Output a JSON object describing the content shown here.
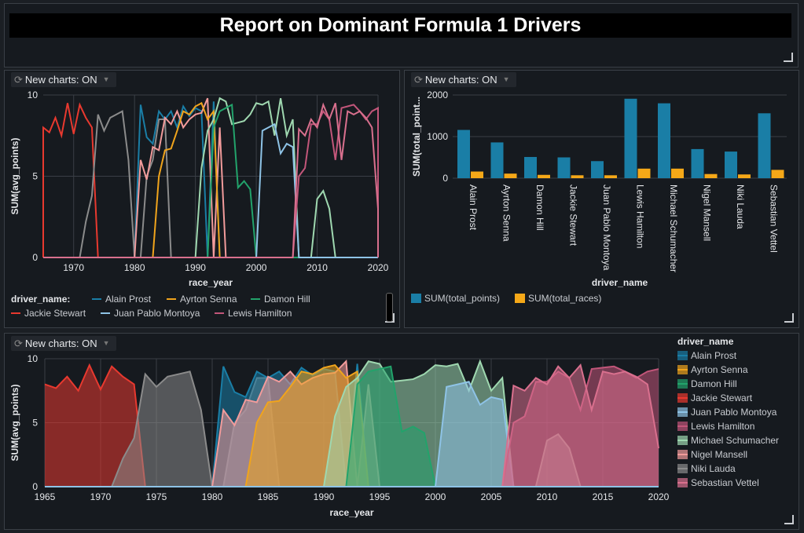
{
  "header": {
    "title": "Report on Dominant Formula 1 Drivers"
  },
  "toggle_label": "New charts: ON",
  "colors": {
    "Alain Prost": "#1a7ea6",
    "Ayrton Senna": "#f0a41c",
    "Damon Hill": "#22a36b",
    "Jackie Stewart": "#e8392f",
    "Juan Pablo Montoya": "#8ec3e6",
    "Lewis Hamilton": "#c2567a",
    "Michael Schumacher": "#9fd8b0",
    "Nigel Mansell": "#f29b9b",
    "Niki Lauda": "#8b8b8b",
    "Sebastian Vettel": "#d9708e"
  },
  "legend_top_left": {
    "title": "driver_name:",
    "items": [
      "Alain Prost",
      "Ayrton Senna",
      "Damon Hill",
      "Jackie Stewart",
      "Juan Pablo Montoya",
      "Lewis Hamilton"
    ]
  },
  "legend_bottom": {
    "title": "driver_name",
    "items": [
      "Alain Prost",
      "Ayrton Senna",
      "Damon Hill",
      "Jackie Stewart",
      "Juan Pablo Montoya",
      "Lewis Hamilton",
      "Michael Schumacher",
      "Nigel Mansell",
      "Niki Lauda",
      "Sebastian Vettel"
    ]
  },
  "legend_bar": {
    "items": [
      "SUM(total_points)",
      "SUM(total_races)"
    ]
  },
  "chart_data": [
    {
      "type": "line",
      "xlabel": "race_year",
      "ylabel": "SUM(avg_points)",
      "xlim": [
        1965,
        2020
      ],
      "ylim": [
        0,
        10
      ],
      "xticks": [
        1970,
        1980,
        1990,
        2000,
        2010,
        2020
      ],
      "yticks": [
        0,
        5,
        10
      ],
      "series": [
        {
          "name": "Jackie Stewart",
          "x": [
            1965,
            1966,
            1967,
            1968,
            1969,
            1970,
            1971,
            1972,
            1973,
            1974
          ],
          "values": [
            8.0,
            7.7,
            8.6,
            7.5,
            9.5,
            7.6,
            9.4,
            8.6,
            8.0,
            0
          ]
        },
        {
          "name": "Niki Lauda",
          "x": [
            1971,
            1972,
            1973,
            1974,
            1975,
            1976,
            1977,
            1978,
            1979,
            1980,
            1981,
            1982,
            1983,
            1984,
            1985,
            1986
          ],
          "values": [
            0,
            2.2,
            3.8,
            8.8,
            7.8,
            8.6,
            8.8,
            9.0,
            6.0,
            0,
            0,
            5.0,
            6.0,
            8.5,
            8.5,
            0
          ]
        },
        {
          "name": "Alain Prost",
          "x": [
            1979,
            1980,
            1981,
            1982,
            1983,
            1984,
            1985,
            1986,
            1987,
            1988,
            1989,
            1990,
            1991,
            1992,
            1993,
            1994
          ],
          "values": [
            0,
            0,
            9.4,
            7.4,
            7.0,
            9.0,
            8.5,
            9.0,
            8.0,
            9.3,
            8.7,
            9.2,
            9.0,
            0,
            9.6,
            0
          ]
        },
        {
          "name": "Nigel Mansell",
          "x": [
            1980,
            1981,
            1982,
            1983,
            1984,
            1985,
            1986,
            1987,
            1988,
            1989,
            1990,
            1991,
            1992,
            1993,
            1994,
            1995
          ],
          "values": [
            0,
            6.0,
            4.8,
            6.8,
            6.6,
            8.6,
            8.2,
            9.0,
            8.0,
            8.5,
            8.8,
            8.9,
            9.8,
            0,
            8.0,
            0
          ]
        },
        {
          "name": "Ayrton Senna",
          "x": [
            1983,
            1984,
            1985,
            1986,
            1987,
            1988,
            1989,
            1990,
            1991,
            1992,
            1993,
            1994
          ],
          "values": [
            0,
            5.0,
            6.6,
            6.7,
            7.8,
            9.0,
            8.8,
            9.3,
            9.5,
            8.5,
            9.0,
            0
          ]
        },
        {
          "name": "Michael Schumacher",
          "x": [
            1990,
            1991,
            1992,
            1993,
            1994,
            1995,
            1996,
            1997,
            1998,
            1999,
            2000,
            2001,
            2002,
            2003,
            2004,
            2005,
            2006,
            2007,
            2008,
            2009,
            2010,
            2011,
            2012,
            2013
          ],
          "values": [
            0,
            5.5,
            7.8,
            8.5,
            9.8,
            9.6,
            8.2,
            8.3,
            8.4,
            8.8,
            9.5,
            9.4,
            9.6,
            7.5,
            9.8,
            7.5,
            8.5,
            0,
            0,
            0,
            3.6,
            4.1,
            3.0,
            0
          ]
        },
        {
          "name": "Damon Hill",
          "x": [
            1991,
            1992,
            1993,
            1994,
            1995,
            1996,
            1997,
            1998,
            1999,
            2000
          ],
          "values": [
            0,
            0,
            8.0,
            9.0,
            9.2,
            9.4,
            4.3,
            4.7,
            4.2,
            0
          ]
        },
        {
          "name": "Juan Pablo Montoya",
          "x": [
            2000,
            2001,
            2002,
            2003,
            2004,
            2005,
            2006,
            2007
          ],
          "values": [
            0,
            7.8,
            8.0,
            8.2,
            6.4,
            7.0,
            6.8,
            0
          ]
        },
        {
          "name": "Lewis Hamilton",
          "x": [
            2006,
            2007,
            2008,
            2009,
            2010,
            2011,
            2012,
            2013,
            2014,
            2015,
            2016,
            2017,
            2018,
            2019,
            2020
          ],
          "values": [
            0,
            5.0,
            5.5,
            8.2,
            8.2,
            9.0,
            8.5,
            6.0,
            9.2,
            9.3,
            9.4,
            9.0,
            8.5,
            9.0,
            9.2
          ]
        },
        {
          "name": "Sebastian Vettel",
          "x": [
            2006,
            2007,
            2008,
            2009,
            2010,
            2011,
            2012,
            2013,
            2014,
            2015,
            2016,
            2017,
            2018,
            2019,
            2020
          ],
          "values": [
            0,
            7.9,
            7.5,
            8.5,
            8.0,
            9.4,
            8.5,
            9.5,
            6.0,
            9.0,
            8.8,
            9.0,
            8.6,
            8.0,
            3.0
          ]
        }
      ]
    },
    {
      "type": "bar",
      "xlabel": "driver_name",
      "ylabel": "SUM(total_point...",
      "ylim": [
        0,
        2000
      ],
      "yticks": [
        0,
        1000,
        2000
      ],
      "categories": [
        "Alain Prost",
        "Ayrton Senna",
        "Damon Hill",
        "Jackie Stewart",
        "Juan Pablo Montoya",
        "Lewis Hamilton",
        "Michael Schumacher",
        "Nigel Mansell",
        "Niki Lauda",
        "Sebastian Vettel"
      ],
      "series": [
        {
          "name": "SUM(total_points)",
          "values": [
            1160,
            860,
            510,
            500,
            410,
            1910,
            1800,
            700,
            640,
            1560
          ]
        },
        {
          "name": "SUM(total_races)",
          "values": [
            160,
            110,
            80,
            70,
            70,
            230,
            230,
            100,
            90,
            200
          ]
        }
      ]
    },
    {
      "type": "area",
      "xlabel": "race_year",
      "ylabel": "SUM(avg_points)",
      "xlim": [
        1965,
        2020
      ],
      "ylim": [
        0,
        10
      ],
      "xticks": [
        1965,
        1970,
        1975,
        1980,
        1985,
        1990,
        1995,
        2000,
        2005,
        2010,
        2015,
        2020
      ],
      "yticks": [
        0,
        5,
        10
      ],
      "series_ref": "same as line chart"
    }
  ]
}
